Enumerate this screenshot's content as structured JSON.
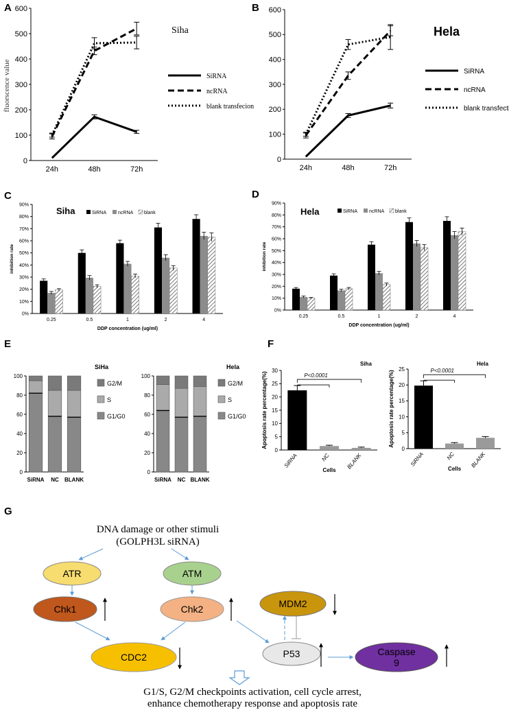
{
  "panel_labels": {
    "A": "A",
    "B": "B",
    "C": "C",
    "D": "D",
    "E": "E",
    "F": "F",
    "G": "G"
  },
  "chart_data": [
    {
      "id": "A",
      "type": "line",
      "title": "Siha",
      "xlabel": "",
      "ylabel": "fluorscence value",
      "categories": [
        "24h",
        "48h",
        "72h"
      ],
      "ylim": [
        0,
        600
      ],
      "yticks": [
        "0",
        "100",
        "200",
        "300",
        "400",
        "500",
        "600"
      ],
      "series": [
        {
          "name": "SiRNA",
          "values": [
            10,
            172,
            113
          ],
          "errors": [
            0,
            8,
            6
          ],
          "style": "solid"
        },
        {
          "name": "ncRNA",
          "values": [
            95,
            432,
            520
          ],
          "errors": [
            10,
            15,
            25
          ],
          "style": "dash"
        },
        {
          "name": "blank transfecion",
          "values": [
            100,
            462,
            465
          ],
          "errors": [
            8,
            22,
            25
          ],
          "style": "dot"
        }
      ]
    },
    {
      "id": "B",
      "type": "line",
      "title": "Hela",
      "xlabel": "",
      "ylabel": "",
      "categories": [
        "24h",
        "48h",
        "72h"
      ],
      "ylim": [
        0,
        600
      ],
      "yticks": [
        "0",
        "100",
        "200",
        "300",
        "400",
        "500",
        "600"
      ],
      "series": [
        {
          "name": "SiRNA",
          "values": [
            10,
            175,
            215
          ],
          "errors": [
            0,
            8,
            10
          ],
          "style": "solid"
        },
        {
          "name": "ncRNA",
          "values": [
            95,
            335,
            515
          ],
          "errors": [
            10,
            15,
            20
          ],
          "style": "dash"
        },
        {
          "name": "blank transfection",
          "values": [
            100,
            460,
            490
          ],
          "errors": [
            8,
            20,
            50
          ],
          "style": "dot"
        }
      ]
    },
    {
      "id": "C",
      "type": "bar",
      "title": "Siha",
      "xlabel": "DDP concentration (ug/ml)",
      "ylabel": "inhibition rate",
      "categories": [
        "0.25",
        "0.5",
        "1",
        "2",
        "4"
      ],
      "ylim": [
        0,
        90
      ],
      "yticks": [
        "0%",
        "10%",
        "20%",
        "30%",
        "40%",
        "50%",
        "60%",
        "70%",
        "80%",
        "90%"
      ],
      "series": [
        {
          "name": "SiRNA",
          "values": [
            27,
            50,
            58,
            71,
            78
          ],
          "errors": [
            1.5,
            2.5,
            2.5,
            3.5,
            3.5
          ]
        },
        {
          "name": "ncRNA",
          "values": [
            17,
            29.5,
            41,
            46,
            64
          ],
          "errors": [
            1.2,
            1.8,
            2,
            2.5,
            3
          ]
        },
        {
          "name": "blank",
          "values": [
            19.5,
            22.5,
            31,
            37.5,
            63
          ],
          "errors": [
            1,
            1.2,
            1.5,
            2,
            3.5
          ]
        }
      ]
    },
    {
      "id": "D",
      "type": "bar",
      "title": "Hela",
      "xlabel": "DDP concentration (ug/ml)",
      "ylabel": "inhibition rate",
      "categories": [
        "0.25",
        "0.5",
        "1",
        "2",
        "4"
      ],
      "ylim": [
        0,
        90
      ],
      "yticks": [
        "0%",
        "10%",
        "20%",
        "30%",
        "40%",
        "50%",
        "60%",
        "70%",
        "80%",
        "90%"
      ],
      "series": [
        {
          "name": "SiRNA",
          "values": [
            18,
            29,
            55,
            74,
            75
          ],
          "errors": [
            1,
            1.5,
            2.5,
            3.5,
            3.5
          ]
        },
        {
          "name": "ncRNA",
          "values": [
            11,
            16.5,
            31,
            56,
            63
          ],
          "errors": [
            0.8,
            1,
            1.5,
            2.5,
            3
          ]
        },
        {
          "name": "blank",
          "values": [
            10,
            18,
            21.5,
            52.5,
            66
          ],
          "errors": [
            0.6,
            1,
            1.2,
            2.5,
            3
          ]
        }
      ]
    },
    {
      "id": "E-siha",
      "type": "bar",
      "stacked": true,
      "title": "SiHa",
      "categories": [
        "SiRNA",
        "NC",
        "BLANK"
      ],
      "ylim": [
        0,
        100
      ],
      "yticks": [
        "0",
        "20",
        "40",
        "60",
        "80",
        "100"
      ],
      "series": [
        {
          "name": "G1/G0",
          "values": [
            82,
            58,
            57
          ],
          "color": "#888888"
        },
        {
          "name": "S",
          "values": [
            13,
            27,
            28
          ],
          "color": "#aaaaaa"
        },
        {
          "name": "G2/M",
          "values": [
            5,
            15,
            15
          ],
          "color": "#7a7a7a"
        }
      ]
    },
    {
      "id": "E-hela",
      "type": "bar",
      "stacked": true,
      "title": "Hela",
      "categories": [
        "SiRNA",
        "NC",
        "BLANK"
      ],
      "ylim": [
        0,
        100
      ],
      "yticks": [
        "0",
        "20",
        "40",
        "60",
        "80",
        "100"
      ],
      "series": [
        {
          "name": "G1/G0",
          "values": [
            64,
            57,
            58
          ],
          "color": "#888888"
        },
        {
          "name": "S",
          "values": [
            27,
            30,
            31
          ],
          "color": "#aaaaaa"
        },
        {
          "name": "G2/M",
          "values": [
            9,
            13,
            11
          ],
          "color": "#7a7a7a"
        }
      ]
    },
    {
      "id": "F-siha",
      "type": "bar",
      "title": "Siha",
      "xlabel": "Cells",
      "ylabel": "Apoptosis rate percentage(%)",
      "categories": [
        "SiRNA",
        "NC",
        "BLANK"
      ],
      "values": [
        22.5,
        1.5,
        0.8
      ],
      "errors": [
        1.8,
        0.3,
        0.3
      ],
      "colors": [
        "#000000",
        "#9a9a9a",
        "#9a9a9a"
      ],
      "ylim": [
        0,
        30
      ],
      "yticks": [
        "0",
        "5",
        "10",
        "15",
        "20",
        "25",
        "30"
      ],
      "annotation": "P<0.0001"
    },
    {
      "id": "F-hela",
      "type": "bar",
      "title": "Hela",
      "xlabel": "Cells",
      "ylabel": "Apoptosis rate percentage(%)",
      "categories": [
        "SiRNA",
        "NC",
        "BLANK"
      ],
      "values": [
        19.8,
        1.6,
        3.4
      ],
      "errors": [
        1.5,
        0.3,
        0.4
      ],
      "colors": [
        "#000000",
        "#9a9a9a",
        "#9a9a9a"
      ],
      "ylim": [
        0,
        25
      ],
      "yticks": [
        "0",
        "5",
        "10",
        "15",
        "20",
        "25"
      ],
      "annotation": "P<0.0001"
    }
  ],
  "diagram": {
    "stimulus_line1": "DNA damage or other stimuli",
    "stimulus_line2": "(GOLPH3L siRNA)",
    "nodes": {
      "ATR": "ATR",
      "ATM": "ATM",
      "Chk1": "Chk1",
      "Chk2": "Chk2",
      "MDM2": "MDM2",
      "CDC2": "CDC2",
      "P53": "P53",
      "Caspase_l1": "Caspase",
      "Caspase_l2": "9"
    },
    "colors": {
      "ATR": "#f7dc6f",
      "ATM": "#a9d18e",
      "Chk1": "#c0571c",
      "Chk2": "#f4b183",
      "MDM2": "#c9950c",
      "CDC2": "#f6c000",
      "P53": "#e8e8e8",
      "Caspase": "#7030a0"
    },
    "outcome_line1": "G1/S, G2/M checkpoints activation, cell cycle arrest,",
    "outcome_line2": "enhance chemotherapy response and apoptosis rate"
  }
}
